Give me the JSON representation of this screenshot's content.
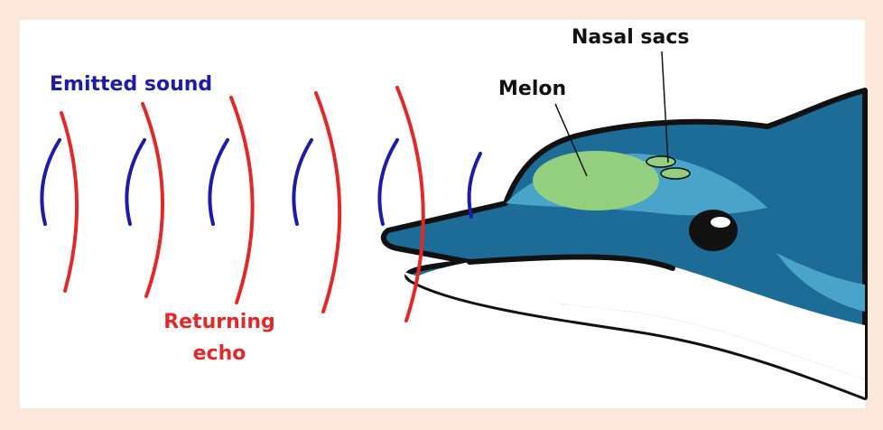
{
  "labels": {
    "emitted_sound": "Emitted sound",
    "returning_echo": [
      "Returning",
      "echo"
    ],
    "melon": "Melon",
    "nasal_sacs": "Nasal sacs"
  }
}
